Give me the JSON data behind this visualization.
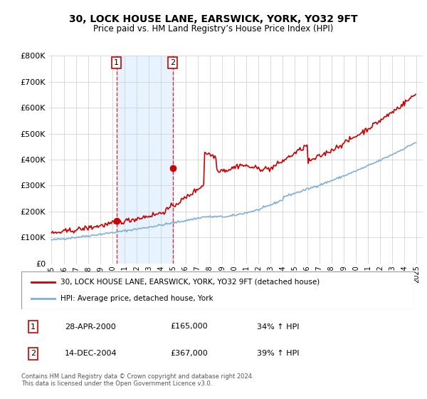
{
  "title": "30, LOCK HOUSE LANE, EARSWICK, YORK, YO32 9FT",
  "subtitle": "Price paid vs. HM Land Registry’s House Price Index (HPI)",
  "legend_line1": "30, LOCK HOUSE LANE, EARSWICK, YORK, YO32 9FT (detached house)",
  "legend_line2": "HPI: Average price, detached house, York",
  "transaction1_date": "28-APR-2000",
  "transaction1_price": "£165,000",
  "transaction1_hpi": "34% ↑ HPI",
  "transaction2_date": "14-DEC-2004",
  "transaction2_price": "£367,000",
  "transaction2_hpi": "39% ↑ HPI",
  "footer": "Contains HM Land Registry data © Crown copyright and database right 2024.\nThis data is licensed under the Open Government Licence v3.0.",
  "red_color": "#cc0000",
  "blue_color": "#7fb0d8",
  "shade_color": "#ddeeff",
  "background_color": "#ffffff",
  "grid_color": "#cccccc",
  "ylim": [
    0,
    800000
  ],
  "yticks": [
    0,
    100000,
    200000,
    300000,
    400000,
    500000,
    600000,
    700000,
    800000
  ],
  "sale1_year": 2000.33,
  "sale2_year": 2004.96,
  "sale1_price": 165000,
  "sale2_price": 367000
}
